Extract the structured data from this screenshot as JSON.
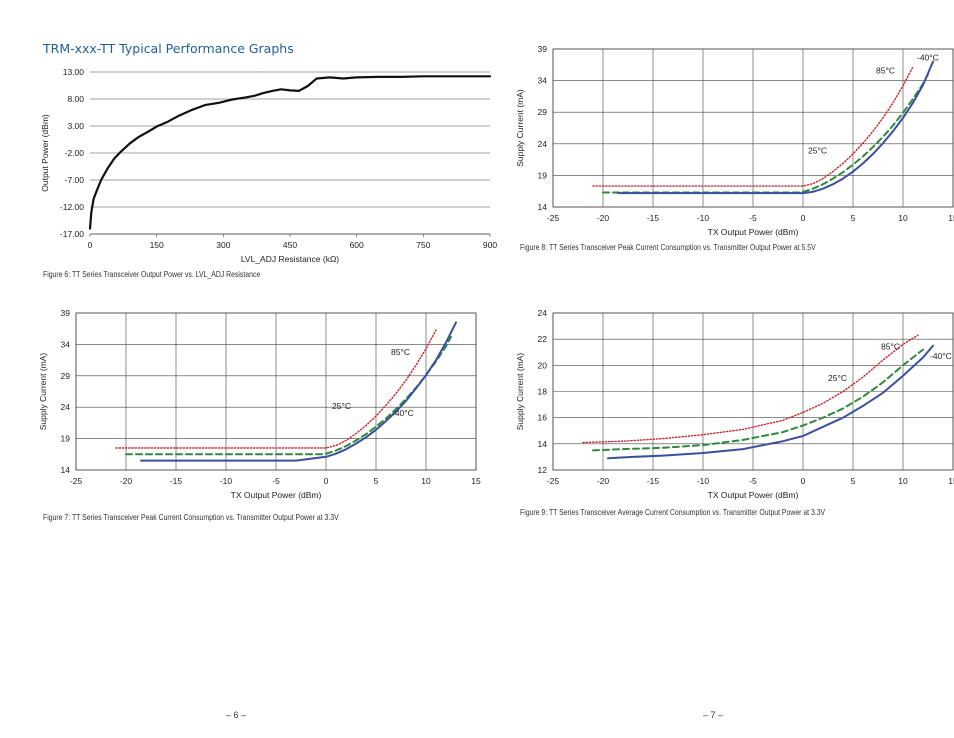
{
  "heading": "TRM-xxx-TT Typical Performance Graphs",
  "captions": {
    "fig6": "Figure 6: TT Series Transceiver Output Power vs. LVL_ADJ Resistance",
    "fig7": "Figure 7: TT Series Transceiver Peak Current Consumption vs. Transmitter Output Power at 3.3V",
    "fig8": "Figure 8: TT Series Transceiver Peak Current Consumption vs. Transmitter Output Power at 5.5V",
    "fig9": "Figure 9: TT Series Transceiver Average Current Consumption vs. Transmitter Output Power at 3.3V"
  },
  "page_numbers": {
    "left": "– 6 –",
    "right": "– 7 –"
  },
  "colors": {
    "black": "#111111",
    "blue": "#3a4fa3",
    "green": "#2e8b3a",
    "red": "#d0202a",
    "grid": "#444444"
  },
  "chart_data": [
    {
      "id": "fig6",
      "type": "line",
      "xlabel": "LVL_ADJ Resistance (kΩ)",
      "ylabel": "Output Power (dBm)",
      "xlim": [
        0,
        900
      ],
      "ylim": [
        -17,
        13
      ],
      "xticks": [
        0,
        150,
        300,
        450,
        600,
        750,
        900
      ],
      "xtick_labels": [
        "0",
        "150",
        "300",
        "450",
        "600",
        "750",
        "900"
      ],
      "yticks": [
        -17,
        -12,
        -7,
        -2,
        3,
        8,
        13
      ],
      "ytick_labels": [
        "-17.00",
        "-12.00",
        "-7.00",
        "-2.00",
        "3.00",
        "8.00",
        "13.00"
      ],
      "grid": "horizontal",
      "series": [
        {
          "color": "black",
          "style": "solid",
          "x": [
            0,
            3,
            8,
            15,
            25,
            40,
            55,
            70,
            90,
            110,
            130,
            150,
            175,
            200,
            230,
            260,
            290,
            320,
            350,
            370,
            390,
            410,
            430,
            450,
            470,
            490,
            510,
            540,
            570,
            600,
            650,
            700,
            750,
            800,
            850,
            900
          ],
          "y": [
            -16,
            -13,
            -10.5,
            -9,
            -7,
            -4.8,
            -3,
            -1.7,
            -0.2,
            1,
            1.9,
            2.9,
            3.8,
            4.9,
            6,
            6.9,
            7.3,
            7.9,
            8.3,
            8.6,
            9.1,
            9.5,
            9.8,
            9.6,
            9.5,
            10.4,
            11.8,
            12,
            11.8,
            12,
            12.1,
            12.1,
            12.2,
            12.2,
            12.2,
            12.2
          ]
        }
      ]
    },
    {
      "id": "fig7",
      "type": "line",
      "xlabel": "TX Output Power (dBm)",
      "ylabel": "Supply Current (mA)",
      "xlim": [
        -25,
        15
      ],
      "ylim": [
        14,
        39
      ],
      "xticks": [
        -25,
        -20,
        -15,
        -10,
        -5,
        0,
        5,
        10,
        15
      ],
      "xtick_labels": [
        "-25",
        "-20",
        "-15",
        "-10",
        "-5",
        "0",
        "5",
        "10",
        "15"
      ],
      "yticks": [
        14,
        19,
        24,
        29,
        34,
        39
      ],
      "ytick_labels": [
        "14",
        "19",
        "24",
        "29",
        "34",
        "39"
      ],
      "grid": "both",
      "annotations": [
        {
          "text": "85°C",
          "x": 6.5,
          "y": 32.3
        },
        {
          "text": "25°C",
          "x": 0.6,
          "y": 23.7
        },
        {
          "text": "-40°C",
          "x": 6.6,
          "y": 22.6
        }
      ],
      "series": [
        {
          "color": "red",
          "style": "dotted",
          "x": [
            -21,
            -15,
            -10,
            -5,
            0,
            1,
            2,
            3,
            4,
            5,
            6,
            7,
            8,
            9,
            10,
            11
          ],
          "y": [
            17.5,
            17.5,
            17.5,
            17.5,
            17.5,
            17.9,
            18.7,
            19.8,
            21.1,
            22.6,
            24.3,
            26.2,
            28.3,
            30.7,
            33.3,
            36.3
          ]
        },
        {
          "color": "green",
          "style": "dashed",
          "x": [
            -20,
            -15,
            -10,
            -5,
            -0.5,
            0,
            1,
            2,
            3,
            4,
            5,
            6,
            7,
            8,
            9,
            10,
            11,
            12,
            12.5
          ],
          "y": [
            16.5,
            16.5,
            16.5,
            16.5,
            16.5,
            16.6,
            17.1,
            17.8,
            18.7,
            19.7,
            20.9,
            22.2,
            23.7,
            25.3,
            27.1,
            29.1,
            31.3,
            33.7,
            35.2
          ]
        },
        {
          "color": "blue",
          "style": "solid",
          "x": [
            -18.5,
            -15,
            -10,
            -5,
            -3,
            0,
            1,
            2,
            3,
            4,
            5,
            6,
            7,
            8,
            9,
            10,
            11,
            12,
            13
          ],
          "y": [
            15.5,
            15.5,
            15.5,
            15.5,
            15.5,
            16.1,
            16.6,
            17.3,
            18.2,
            19.2,
            20.4,
            21.8,
            23.3,
            25,
            27,
            29.1,
            31.5,
            34.3,
            37.5
          ]
        }
      ]
    },
    {
      "id": "fig8",
      "type": "line",
      "xlabel": "TX Output Power (dBm)",
      "ylabel": "Supply Current (mA)",
      "xlim": [
        -25,
        15
      ],
      "ylim": [
        14,
        39
      ],
      "xticks": [
        -25,
        -20,
        -15,
        -10,
        -5,
        0,
        5,
        10,
        15
      ],
      "xtick_labels": [
        "-25",
        "-20",
        "-15",
        "-10",
        "-5",
        "0",
        "5",
        "10",
        "15"
      ],
      "yticks": [
        14,
        19,
        24,
        29,
        34,
        39
      ],
      "ytick_labels": [
        "14",
        "19",
        "24",
        "29",
        "34",
        "39"
      ],
      "grid": "both",
      "annotations": [
        {
          "text": "-40°C",
          "x": 11.4,
          "y": 37.2
        },
        {
          "text": "85°C",
          "x": 7.3,
          "y": 35.1
        },
        {
          "text": "25°C",
          "x": 0.5,
          "y": 22.5
        }
      ],
      "series": [
        {
          "color": "red",
          "style": "dotted",
          "x": [
            -21,
            -15,
            -10,
            -5,
            0,
            1,
            2,
            3,
            4,
            5,
            6,
            7,
            8,
            9,
            10,
            11
          ],
          "y": [
            17.3,
            17.3,
            17.3,
            17.3,
            17.3,
            17.7,
            18.5,
            19.6,
            20.9,
            22.4,
            24.1,
            26,
            28.1,
            30.5,
            33.2,
            36.2
          ]
        },
        {
          "color": "green",
          "style": "dashed",
          "x": [
            -20,
            -15,
            -10,
            -5,
            -0.5,
            0,
            1,
            2,
            3,
            4,
            5,
            6,
            7,
            8,
            9,
            10,
            11,
            12,
            12.5
          ],
          "y": [
            16.3,
            16.3,
            16.3,
            16.3,
            16.3,
            16.4,
            16.9,
            17.6,
            18.5,
            19.5,
            20.7,
            22,
            23.5,
            25.1,
            26.9,
            28.9,
            31.1,
            33.5,
            35
          ]
        },
        {
          "color": "blue",
          "style": "solid",
          "x": [
            -18.5,
            -15,
            -10,
            -5,
            0,
            1,
            2,
            3,
            4,
            5,
            6,
            7,
            8,
            9,
            10,
            11,
            12,
            13
          ],
          "y": [
            16.2,
            16.2,
            16.2,
            16.2,
            16.2,
            16.4,
            16.9,
            17.6,
            18.5,
            19.6,
            20.9,
            22.4,
            24.1,
            26,
            28.1,
            30.5,
            33.3,
            37
          ]
        }
      ]
    },
    {
      "id": "fig9",
      "type": "line",
      "xlabel": "TX Output Power (dBm)",
      "ylabel": "Supply Current (mA)",
      "xlim": [
        -25,
        15
      ],
      "ylim": [
        12,
        24
      ],
      "xticks": [
        -25,
        -20,
        -15,
        -10,
        -5,
        0,
        5,
        10,
        15
      ],
      "xtick_labels": [
        "-25",
        "-20",
        "-15",
        "-10",
        "-5",
        "0",
        "5",
        "10",
        "15"
      ],
      "yticks": [
        12,
        14,
        16,
        18,
        20,
        22,
        24
      ],
      "ytick_labels": [
        "12",
        "14",
        "16",
        "18",
        "20",
        "22",
        "24"
      ],
      "grid": "both",
      "annotations": [
        {
          "text": "85°C",
          "x": 7.8,
          "y": 21.2
        },
        {
          "text": "-40°C",
          "x": 12.7,
          "y": 20.5
        },
        {
          "text": "25°C",
          "x": 2.5,
          "y": 18.8
        }
      ],
      "series": [
        {
          "color": "red",
          "style": "dotted",
          "x": [
            -22,
            -18,
            -14,
            -10,
            -6,
            -2,
            0,
            2,
            4,
            6,
            8,
            10,
            11.5
          ],
          "y": [
            14.1,
            14.2,
            14.4,
            14.7,
            15.1,
            15.8,
            16.4,
            17.1,
            18,
            19.1,
            20.4,
            21.6,
            22.3
          ]
        },
        {
          "color": "green",
          "style": "dashed",
          "x": [
            -21,
            -18,
            -14,
            -10,
            -6,
            -2,
            0,
            2,
            4,
            6,
            8,
            10,
            12
          ],
          "y": [
            13.5,
            13.6,
            13.7,
            13.9,
            14.3,
            14.9,
            15.4,
            16,
            16.7,
            17.6,
            18.7,
            20,
            21.2
          ]
        },
        {
          "color": "blue",
          "style": "solid",
          "x": [
            -19.5,
            -17,
            -14,
            -10,
            -6,
            -2,
            0,
            2,
            4,
            6,
            8,
            10,
            12,
            13
          ],
          "y": [
            12.9,
            13,
            13.1,
            13.3,
            13.6,
            14.2,
            14.6,
            15.3,
            16,
            16.9,
            17.9,
            19.2,
            20.6,
            21.5
          ]
        }
      ]
    }
  ]
}
